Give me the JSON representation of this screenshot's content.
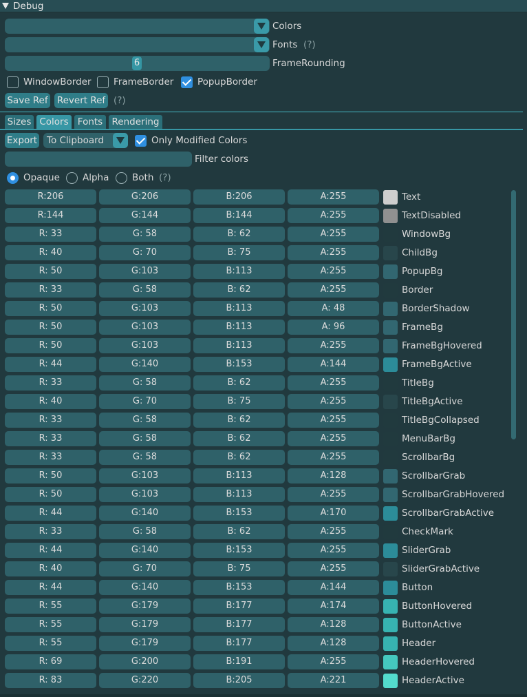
{
  "window": {
    "title": "Debug"
  },
  "controls": {
    "colors_label": "Colors",
    "fonts_label": "Fonts",
    "fonts_help": "(?)",
    "frame_rounding_value": "6",
    "frame_rounding_label": "FrameRounding",
    "window_border": {
      "label": "WindowBorder",
      "checked": false
    },
    "frame_border": {
      "label": "FrameBorder",
      "checked": false
    },
    "popup_border": {
      "label": "PopupBorder",
      "checked": true
    },
    "save_ref": "Save Ref",
    "revert_ref": "Revert Ref",
    "ref_help": "(?)"
  },
  "tabs": [
    {
      "label": "Sizes",
      "active": false
    },
    {
      "label": "Colors",
      "active": true
    },
    {
      "label": "Fonts",
      "active": false
    },
    {
      "label": "Rendering",
      "active": false
    }
  ],
  "colors_tab": {
    "export": "Export",
    "export_target": "To Clipboard",
    "only_modified": {
      "label": "Only Modified Colors",
      "checked": true
    },
    "filter_label": "Filter colors",
    "filter_value": "",
    "modes": [
      {
        "label": "Opaque",
        "selected": true
      },
      {
        "label": "Alpha",
        "selected": false
      },
      {
        "label": "Both",
        "selected": false
      }
    ],
    "modes_help": "(?)",
    "rows": [
      {
        "r": "R:206",
        "g": "G:206",
        "b": "B:206",
        "a": "A:255",
        "name": "Text",
        "swatch": "#cecece"
      },
      {
        "r": "R:144",
        "g": "G:144",
        "b": "B:144",
        "a": "A:255",
        "name": "TextDisabled",
        "swatch": "#909090"
      },
      {
        "r": "R: 33",
        "g": "G: 58",
        "b": "B: 62",
        "a": "A:255",
        "name": "WindowBg",
        "swatch": "#213a3e"
      },
      {
        "r": "R: 40",
        "g": "G: 70",
        "b": "B: 75",
        "a": "A:255",
        "name": "ChildBg",
        "swatch": "#28464b"
      },
      {
        "r": "R: 50",
        "g": "G:103",
        "b": "B:113",
        "a": "A:255",
        "name": "PopupBg",
        "swatch": "#326771"
      },
      {
        "r": "R: 33",
        "g": "G: 58",
        "b": "B: 62",
        "a": "A:255",
        "name": "Border",
        "swatch": "#213a3e"
      },
      {
        "r": "R: 50",
        "g": "G:103",
        "b": "B:113",
        "a": "A: 48",
        "name": "BorderShadow",
        "swatch": "#326771"
      },
      {
        "r": "R: 50",
        "g": "G:103",
        "b": "B:113",
        "a": "A: 96",
        "name": "FrameBg",
        "swatch": "#326771"
      },
      {
        "r": "R: 50",
        "g": "G:103",
        "b": "B:113",
        "a": "A:255",
        "name": "FrameBgHovered",
        "swatch": "#326771"
      },
      {
        "r": "R: 44",
        "g": "G:140",
        "b": "B:153",
        "a": "A:144",
        "name": "FrameBgActive",
        "swatch": "#2c8c99"
      },
      {
        "r": "R: 33",
        "g": "G: 58",
        "b": "B: 62",
        "a": "A:255",
        "name": "TitleBg",
        "swatch": "#213a3e"
      },
      {
        "r": "R: 40",
        "g": "G: 70",
        "b": "B: 75",
        "a": "A:255",
        "name": "TitleBgActive",
        "swatch": "#28464b"
      },
      {
        "r": "R: 33",
        "g": "G: 58",
        "b": "B: 62",
        "a": "A:255",
        "name": "TitleBgCollapsed",
        "swatch": "#213a3e"
      },
      {
        "r": "R: 33",
        "g": "G: 58",
        "b": "B: 62",
        "a": "A:255",
        "name": "MenuBarBg",
        "swatch": "#213a3e"
      },
      {
        "r": "R: 33",
        "g": "G: 58",
        "b": "B: 62",
        "a": "A:255",
        "name": "ScrollbarBg",
        "swatch": "#213a3e"
      },
      {
        "r": "R: 50",
        "g": "G:103",
        "b": "B:113",
        "a": "A:128",
        "name": "ScrollbarGrab",
        "swatch": "#326771"
      },
      {
        "r": "R: 50",
        "g": "G:103",
        "b": "B:113",
        "a": "A:255",
        "name": "ScrollbarGrabHovered",
        "swatch": "#326771"
      },
      {
        "r": "R: 44",
        "g": "G:140",
        "b": "B:153",
        "a": "A:170",
        "name": "ScrollbarGrabActive",
        "swatch": "#2c8c99"
      },
      {
        "r": "R: 33",
        "g": "G: 58",
        "b": "B: 62",
        "a": "A:255",
        "name": "CheckMark",
        "swatch": "#213a3e"
      },
      {
        "r": "R: 44",
        "g": "G:140",
        "b": "B:153",
        "a": "A:255",
        "name": "SliderGrab",
        "swatch": "#2c8c99"
      },
      {
        "r": "R: 40",
        "g": "G: 70",
        "b": "B: 75",
        "a": "A:255",
        "name": "SliderGrabActive",
        "swatch": "#28464b"
      },
      {
        "r": "R: 44",
        "g": "G:140",
        "b": "B:153",
        "a": "A:144",
        "name": "Button",
        "swatch": "#2c8c99"
      },
      {
        "r": "R: 55",
        "g": "G:179",
        "b": "B:177",
        "a": "A:174",
        "name": "ButtonHovered",
        "swatch": "#37b3b1"
      },
      {
        "r": "R: 55",
        "g": "G:179",
        "b": "B:177",
        "a": "A:128",
        "name": "ButtonActive",
        "swatch": "#37b3b1"
      },
      {
        "r": "R: 55",
        "g": "G:179",
        "b": "B:177",
        "a": "A:128",
        "name": "Header",
        "swatch": "#37b3b1"
      },
      {
        "r": "R: 69",
        "g": "G:200",
        "b": "B:191",
        "a": "A:255",
        "name": "HeaderHovered",
        "swatch": "#45c8bf"
      },
      {
        "r": "R: 83",
        "g": "G:220",
        "b": "B:205",
        "a": "A:221",
        "name": "HeaderActive",
        "swatch": "#53dccd"
      }
    ]
  }
}
